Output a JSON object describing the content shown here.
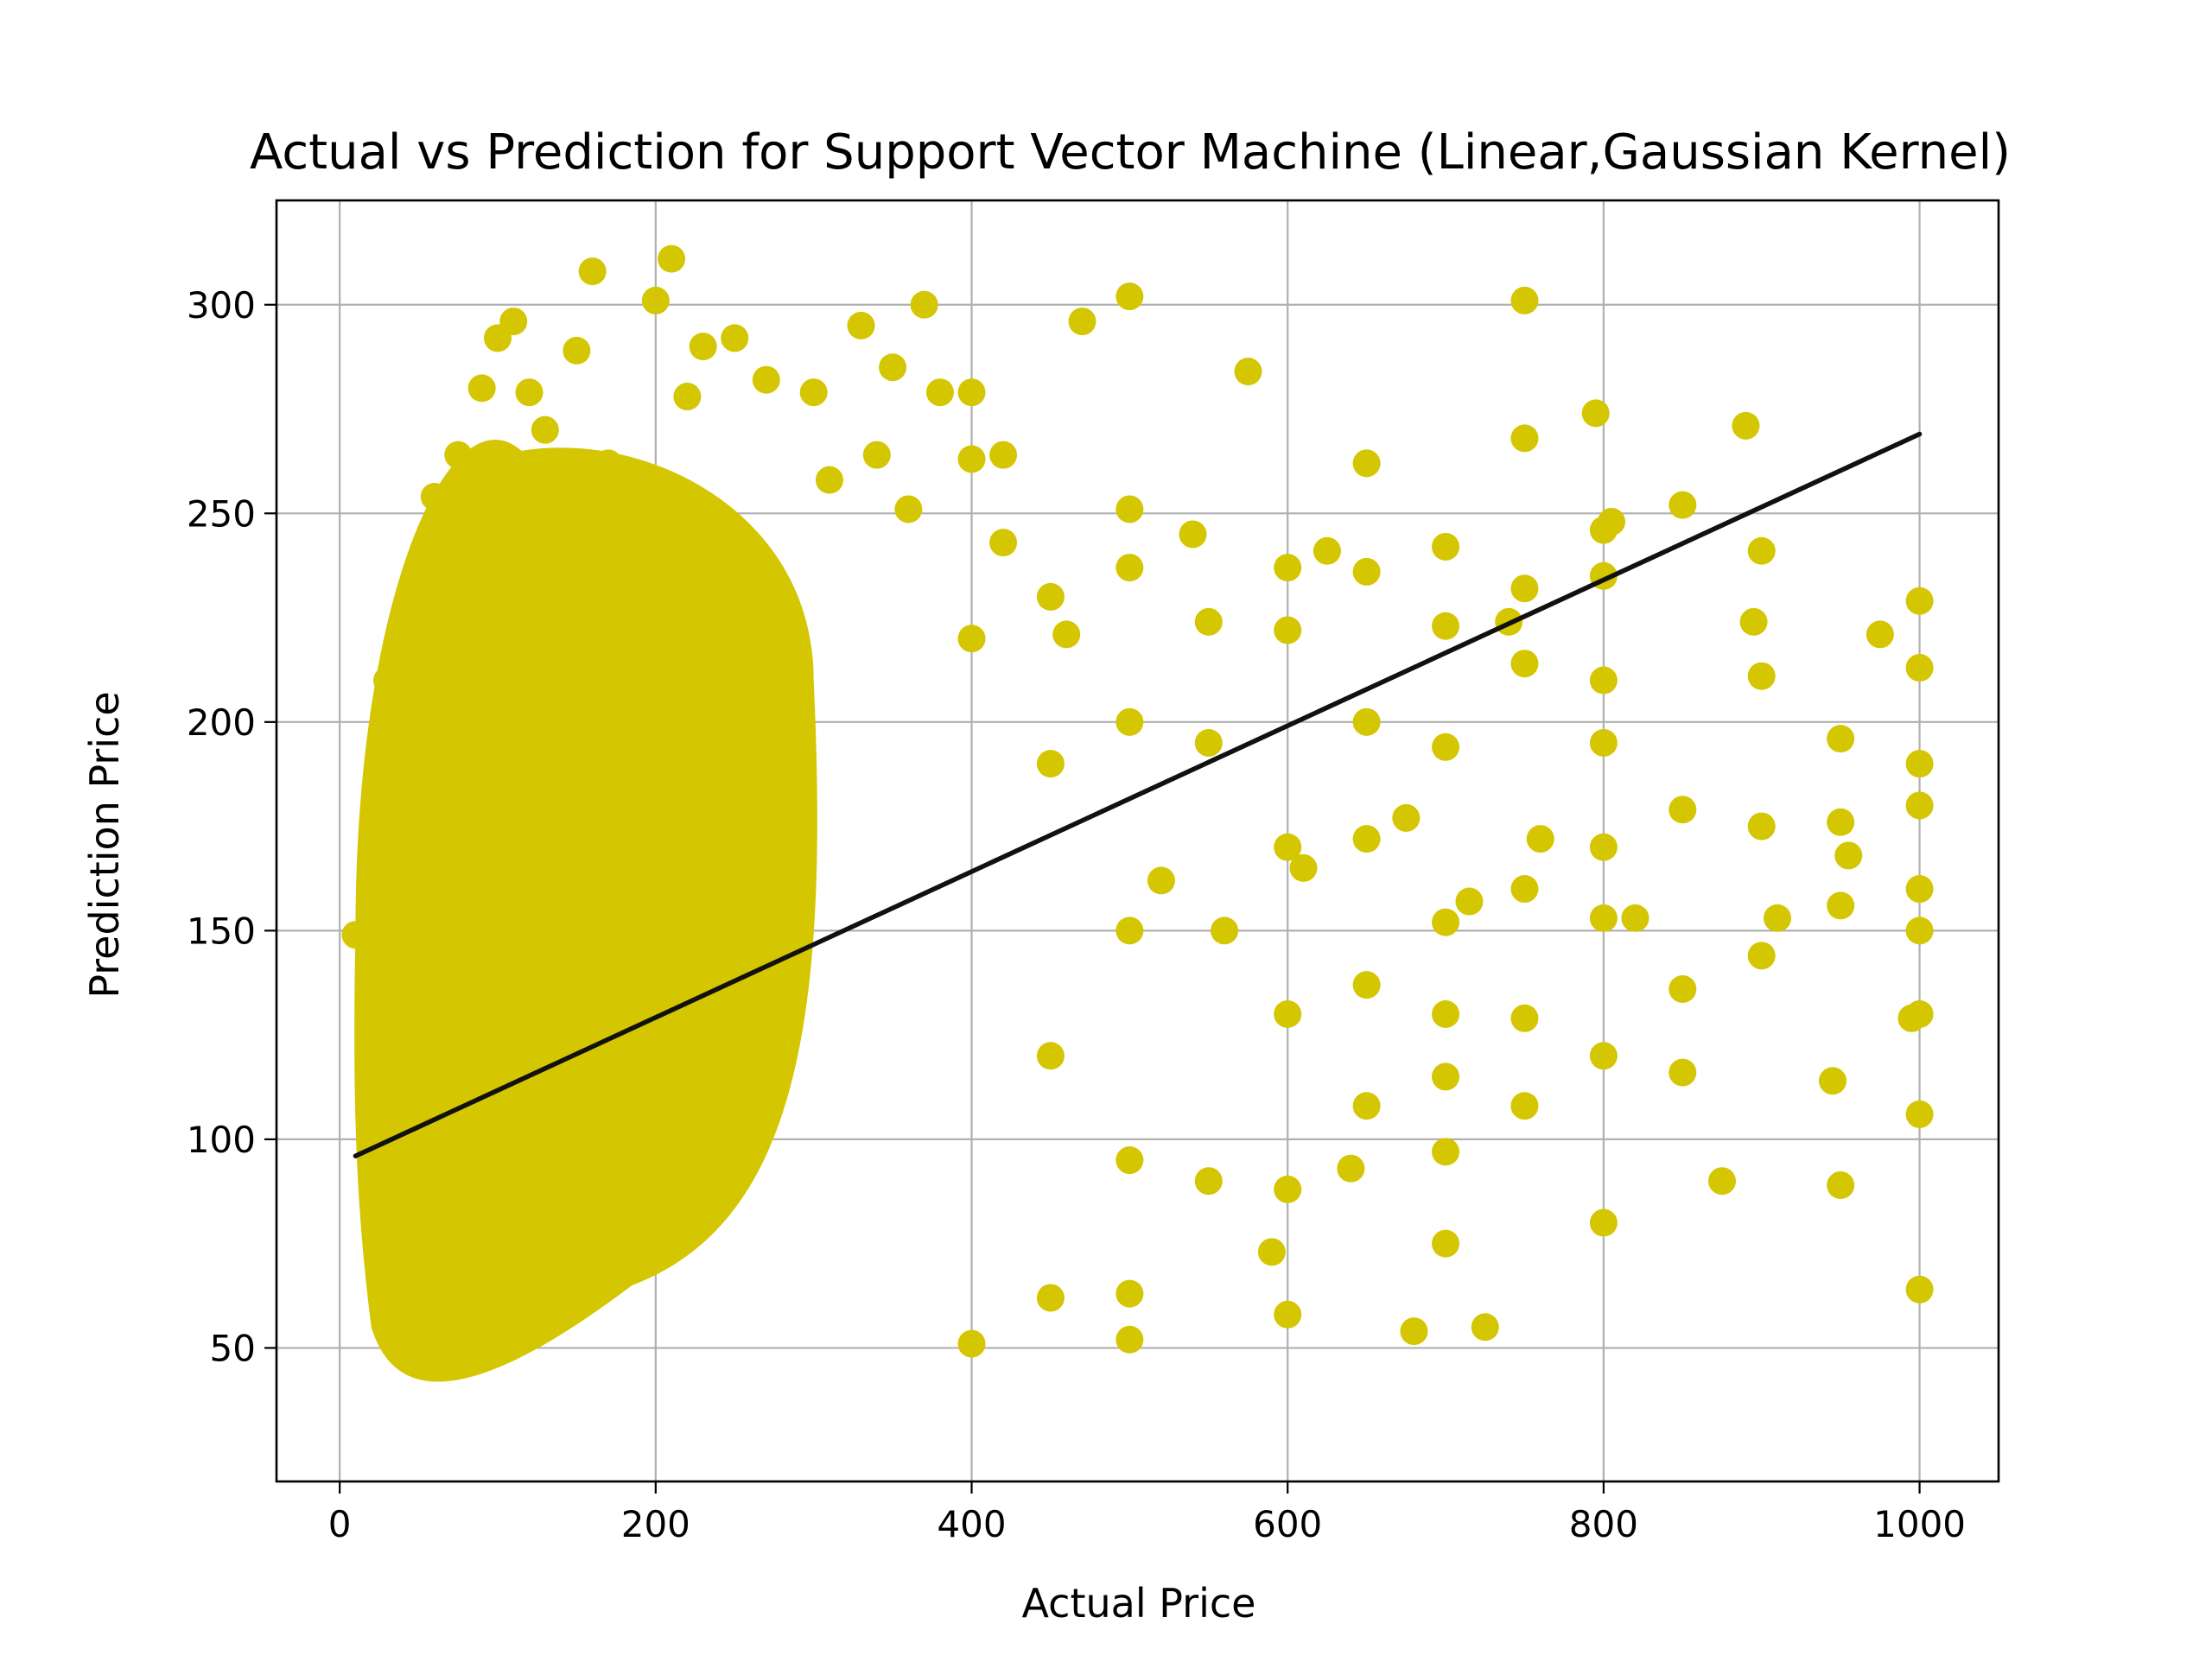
{
  "chart_data": {
    "type": "scatter",
    "title": "Actual vs Prediction for Support Vector Machine (Linear,Gaussian Kernel)",
    "xlabel": "Actual Price",
    "ylabel": "Prediction Price",
    "xlim": [
      -40,
      1050
    ],
    "ylim": [
      18,
      325
    ],
    "xticks": [
      0,
      200,
      400,
      600,
      800,
      1000
    ],
    "yticks": [
      50,
      100,
      150,
      200,
      250,
      300
    ],
    "grid": true,
    "legend": "none",
    "colors": {
      "points": "#d4c600",
      "line": "#111111",
      "grid": "#b0b0b0"
    },
    "series": [
      {
        "kind": "points",
        "dense_cloud": {
          "x_min": 10,
          "x_max": 300,
          "y_min": 35,
          "y_max": 300,
          "center_y": 150
        },
        "x": [
          10,
          20,
          25,
          30,
          40,
          50,
          60,
          75,
          90,
          100,
          110,
          120,
          130,
          150,
          160,
          170,
          200,
          210,
          220,
          230,
          250,
          270,
          300,
          310,
          330,
          340,
          350,
          360,
          370,
          380,
          400,
          400,
          400,
          400,
          420,
          420,
          450,
          450,
          450,
          450,
          460,
          470,
          500,
          500,
          500,
          500,
          500,
          500,
          500,
          500,
          520,
          540,
          550,
          550,
          550,
          560,
          575,
          590,
          600,
          600,
          600,
          600,
          600,
          600,
          610,
          625,
          640,
          650,
          650,
          650,
          650,
          650,
          650,
          675,
          680,
          700,
          700,
          700,
          700,
          700,
          700,
          700,
          700,
          715,
          725,
          740,
          750,
          750,
          750,
          750,
          750,
          750,
          750,
          760,
          795,
          800,
          800,
          800,
          800,
          800,
          800,
          800,
          800,
          805,
          820,
          850,
          850,
          850,
          850,
          875,
          890,
          895,
          900,
          900,
          900,
          900,
          910,
          945,
          950,
          950,
          950,
          950,
          955,
          975,
          995,
          1000,
          1000,
          1000,
          1000,
          1000,
          1000,
          1000,
          1000,
          1000
        ],
        "y": [
          149,
          125,
          179,
          210,
          221,
          229,
          254,
          264,
          280,
          292,
          296,
          279,
          270,
          289,
          308,
          262,
          301,
          311,
          278,
          290,
          292,
          282,
          279,
          258,
          295,
          264,
          285,
          251,
          300,
          279,
          279,
          263,
          220,
          51,
          264,
          243,
          230,
          190,
          62,
          120,
          221,
          296,
          302,
          251,
          237,
          200,
          150,
          52,
          63,
          95,
          162,
          245,
          224,
          195,
          90,
          150,
          284,
          73,
          237,
          222,
          170,
          130,
          88,
          58,
          165,
          241,
          93,
          262,
          236,
          200,
          172,
          137,
          108,
          177,
          54,
          242,
          223,
          194,
          152,
          130,
          97,
          75,
          115,
          157,
          55,
          224,
          301,
          268,
          232,
          214,
          160,
          129,
          108,
          172,
          274,
          246,
          235,
          210,
          195,
          170,
          153,
          120,
          80,
          248,
          153,
          252,
          179,
          136,
          116,
          90,
          271,
          224,
          241,
          211,
          175,
          144,
          153,
          114,
          196,
          176,
          156,
          89,
          168,
          221,
          129,
          229,
          213,
          190,
          180,
          160,
          150,
          130,
          106,
          64
        ]
      },
      {
        "kind": "line",
        "x": [
          10,
          1000
        ],
        "y": [
          96,
          269
        ]
      }
    ]
  }
}
